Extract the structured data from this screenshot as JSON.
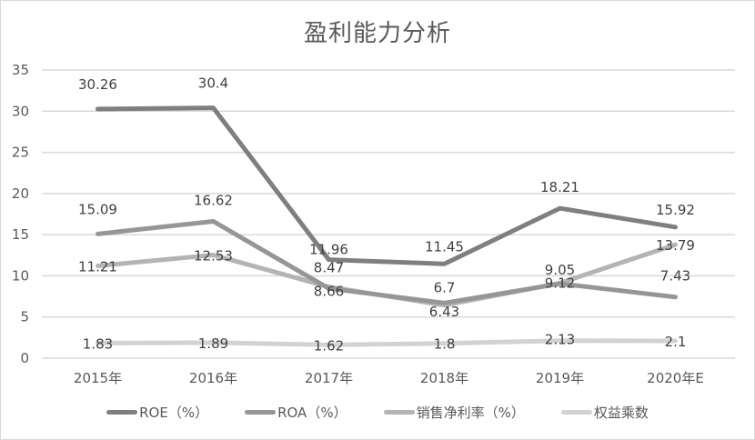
{
  "chart_data": {
    "type": "line",
    "title": "盈利能力分析",
    "xlabel": "",
    "ylabel": "",
    "ylim": [
      0,
      35
    ],
    "yticks": [
      0,
      5,
      10,
      15,
      20,
      25,
      30,
      35
    ],
    "grid": true,
    "legend_position": "bottom",
    "categories": [
      "2015年",
      "2016年",
      "2017年",
      "2018年",
      "2019年",
      "2020年E"
    ],
    "series": [
      {
        "name": "ROE（%）",
        "color": "#7f7f7f",
        "values": [
          30.26,
          30.4,
          11.96,
          11.45,
          18.21,
          15.92
        ]
      },
      {
        "name": "ROA（%）",
        "color": "#969696",
        "values": [
          15.09,
          16.62,
          8.47,
          6.7,
          9.05,
          7.43
        ]
      },
      {
        "name": "销售净利率（%）",
        "color": "#b4b4b4",
        "values": [
          11.21,
          12.53,
          8.66,
          6.43,
          9.12,
          13.79
        ]
      },
      {
        "name": "权益乘数",
        "color": "#d2d2d2",
        "values": [
          1.83,
          1.89,
          1.62,
          1.8,
          2.13,
          2.1
        ]
      }
    ]
  },
  "legend": [
    {
      "label": "ROE（%）",
      "color": "#7f7f7f"
    },
    {
      "label": "ROA（%）",
      "color": "#969696"
    },
    {
      "label": "销售净利率（%）",
      "color": "#b4b4b4"
    },
    {
      "label": "权益乘数",
      "color": "#d2d2d2"
    }
  ]
}
